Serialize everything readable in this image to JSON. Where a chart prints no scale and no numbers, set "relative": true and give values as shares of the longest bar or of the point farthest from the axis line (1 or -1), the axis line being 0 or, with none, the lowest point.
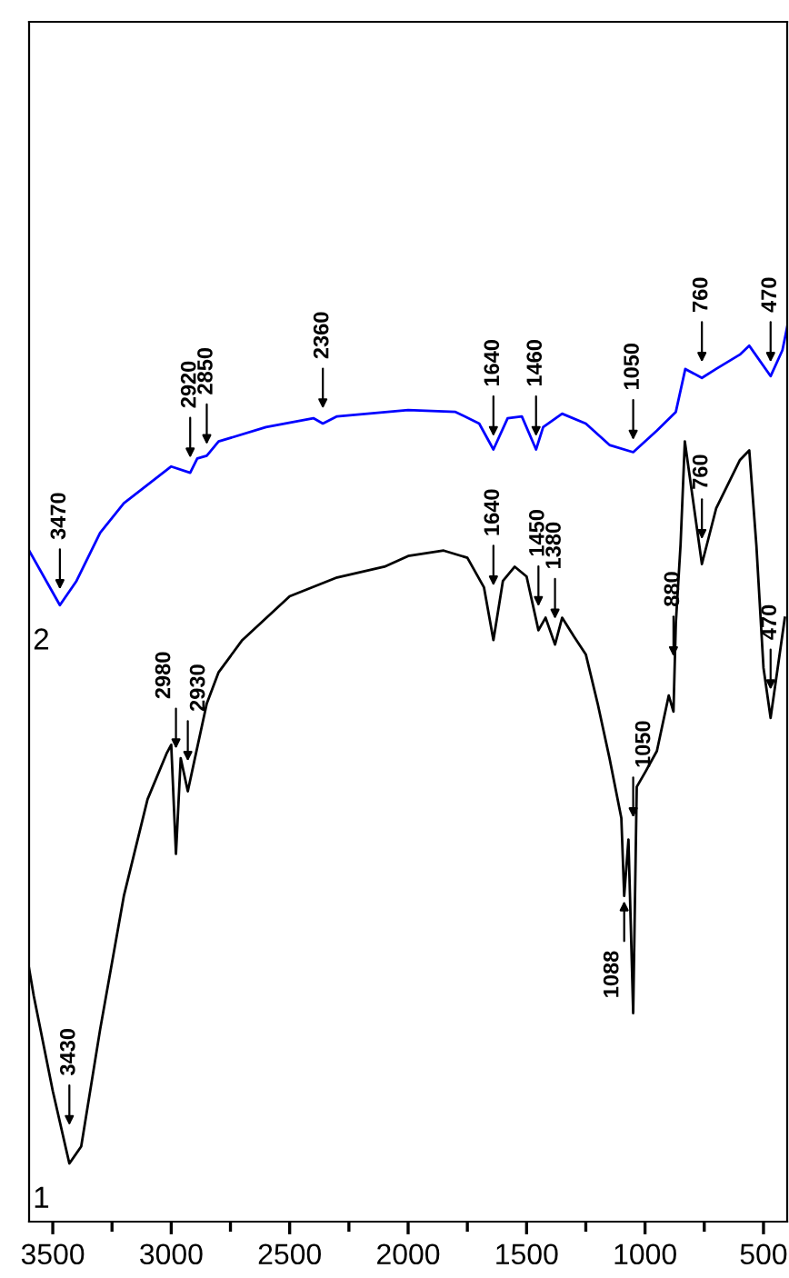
{
  "chart_data": {
    "type": "line",
    "relative": true,
    "xlim": [
      3600,
      400
    ],
    "xticks": [
      3500,
      {
        "value": 3250,
        "label": null
      },
      3000,
      {
        "value": 2750,
        "label": null
      },
      2500,
      {
        "value": 2250,
        "label": null
      },
      2000,
      {
        "value": 1750,
        "label": null
      },
      1500,
      {
        "value": 1250,
        "label": null
      },
      1000,
      {
        "value": 750,
        "label": null
      },
      500
    ],
    "tick_labels": "x",
    "grid": false,
    "legend": false,
    "marker": "none",
    "line_style": "solid",
    "series": [
      {
        "name": "1",
        "color": "#000000",
        "x": [
          3600,
          3580,
          3500,
          3430,
          3380,
          3300,
          3200,
          3100,
          3020,
          3000,
          2980,
          2960,
          2930,
          2900,
          2850,
          2800,
          2700,
          2500,
          2300,
          2100,
          2000,
          1850,
          1750,
          1680,
          1640,
          1600,
          1550,
          1500,
          1450,
          1420,
          1380,
          1350,
          1300,
          1250,
          1200,
          1150,
          1100,
          1088,
          1070,
          1050,
          1035,
          1000,
          950,
          900,
          880,
          870,
          850,
          832,
          760,
          700,
          600,
          560,
          530,
          500,
          470,
          440,
          410
        ],
        "values": [
          0.283,
          0.252,
          0.146,
          0.065,
          0.084,
          0.215,
          0.364,
          0.472,
          0.523,
          0.533,
          0.411,
          0.518,
          0.481,
          0.518,
          0.579,
          0.614,
          0.65,
          0.699,
          0.72,
          0.732,
          0.744,
          0.75,
          0.742,
          0.709,
          0.65,
          0.716,
          0.732,
          0.721,
          0.661,
          0.675,
          0.645,
          0.675,
          0.654,
          0.634,
          0.579,
          0.518,
          0.451,
          0.364,
          0.427,
          0.233,
          0.486,
          0.502,
          0.526,
          0.588,
          0.57,
          0.669,
          0.757,
          0.872,
          0.735,
          0.797,
          0.851,
          0.862,
          0.756,
          0.619,
          0.563,
          0.619,
          0.675
        ]
      },
      {
        "name": "2",
        "color": "#0000ff",
        "x": [
          3600,
          3470,
          3400,
          3300,
          3200,
          3000,
          2920,
          2890,
          2850,
          2800,
          2600,
          2400,
          2360,
          2300,
          2000,
          1800,
          1700,
          1640,
          1580,
          1520,
          1460,
          1430,
          1350,
          1250,
          1150,
          1050,
          950,
          870,
          830,
          760,
          700,
          600,
          560,
          470,
          420,
          400
        ],
        "values": [
          0.75,
          0.689,
          0.716,
          0.77,
          0.803,
          0.844,
          0.837,
          0.853,
          0.856,
          0.872,
          0.888,
          0.898,
          0.892,
          0.9,
          0.907,
          0.905,
          0.892,
          0.863,
          0.898,
          0.9,
          0.863,
          0.888,
          0.903,
          0.892,
          0.868,
          0.86,
          0.884,
          0.905,
          0.953,
          0.943,
          0.953,
          0.969,
          0.979,
          0.945,
          0.974,
          1.0
        ]
      }
    ],
    "annotations": [
      {
        "text": "3430",
        "x": 3430,
        "y": 0.102
      },
      {
        "text": "2980",
        "x": 2980,
        "y": 0.523
      },
      {
        "text": "2930",
        "x": 2930,
        "y": 0.509
      },
      {
        "text": "1640",
        "x": 1640,
        "y": 0.705
      },
      {
        "text": "1450",
        "x": 1450,
        "y": 0.682
      },
      {
        "text": "1380",
        "x": 1380,
        "y": 0.668
      },
      {
        "text": "1050",
        "x": 1050,
        "y": 0.446
      },
      {
        "text": "1088",
        "x": 1088,
        "y": 0.364
      },
      {
        "text": "880",
        "x": 880,
        "y": 0.626
      },
      {
        "text": "760",
        "x": 760,
        "y": 0.757
      },
      {
        "text": "470",
        "x": 470,
        "y": 0.589
      },
      {
        "text": "3470",
        "x": 3470,
        "y": 0.701
      },
      {
        "text": "2920",
        "x": 2920,
        "y": 0.848
      },
      {
        "text": "2850",
        "x": 2850,
        "y": 0.863
      },
      {
        "text": "2360",
        "x": 2360,
        "y": 0.903
      },
      {
        "text": "1640",
        "x": 1640,
        "y": 0.872
      },
      {
        "text": "1460",
        "x": 1460,
        "y": 0.872
      },
      {
        "text": "1050",
        "x": 1050,
        "y": 0.868
      },
      {
        "text": "760",
        "x": 760,
        "y": 0.955
      },
      {
        "text": "470",
        "x": 470,
        "y": 0.955
      }
    ]
  }
}
